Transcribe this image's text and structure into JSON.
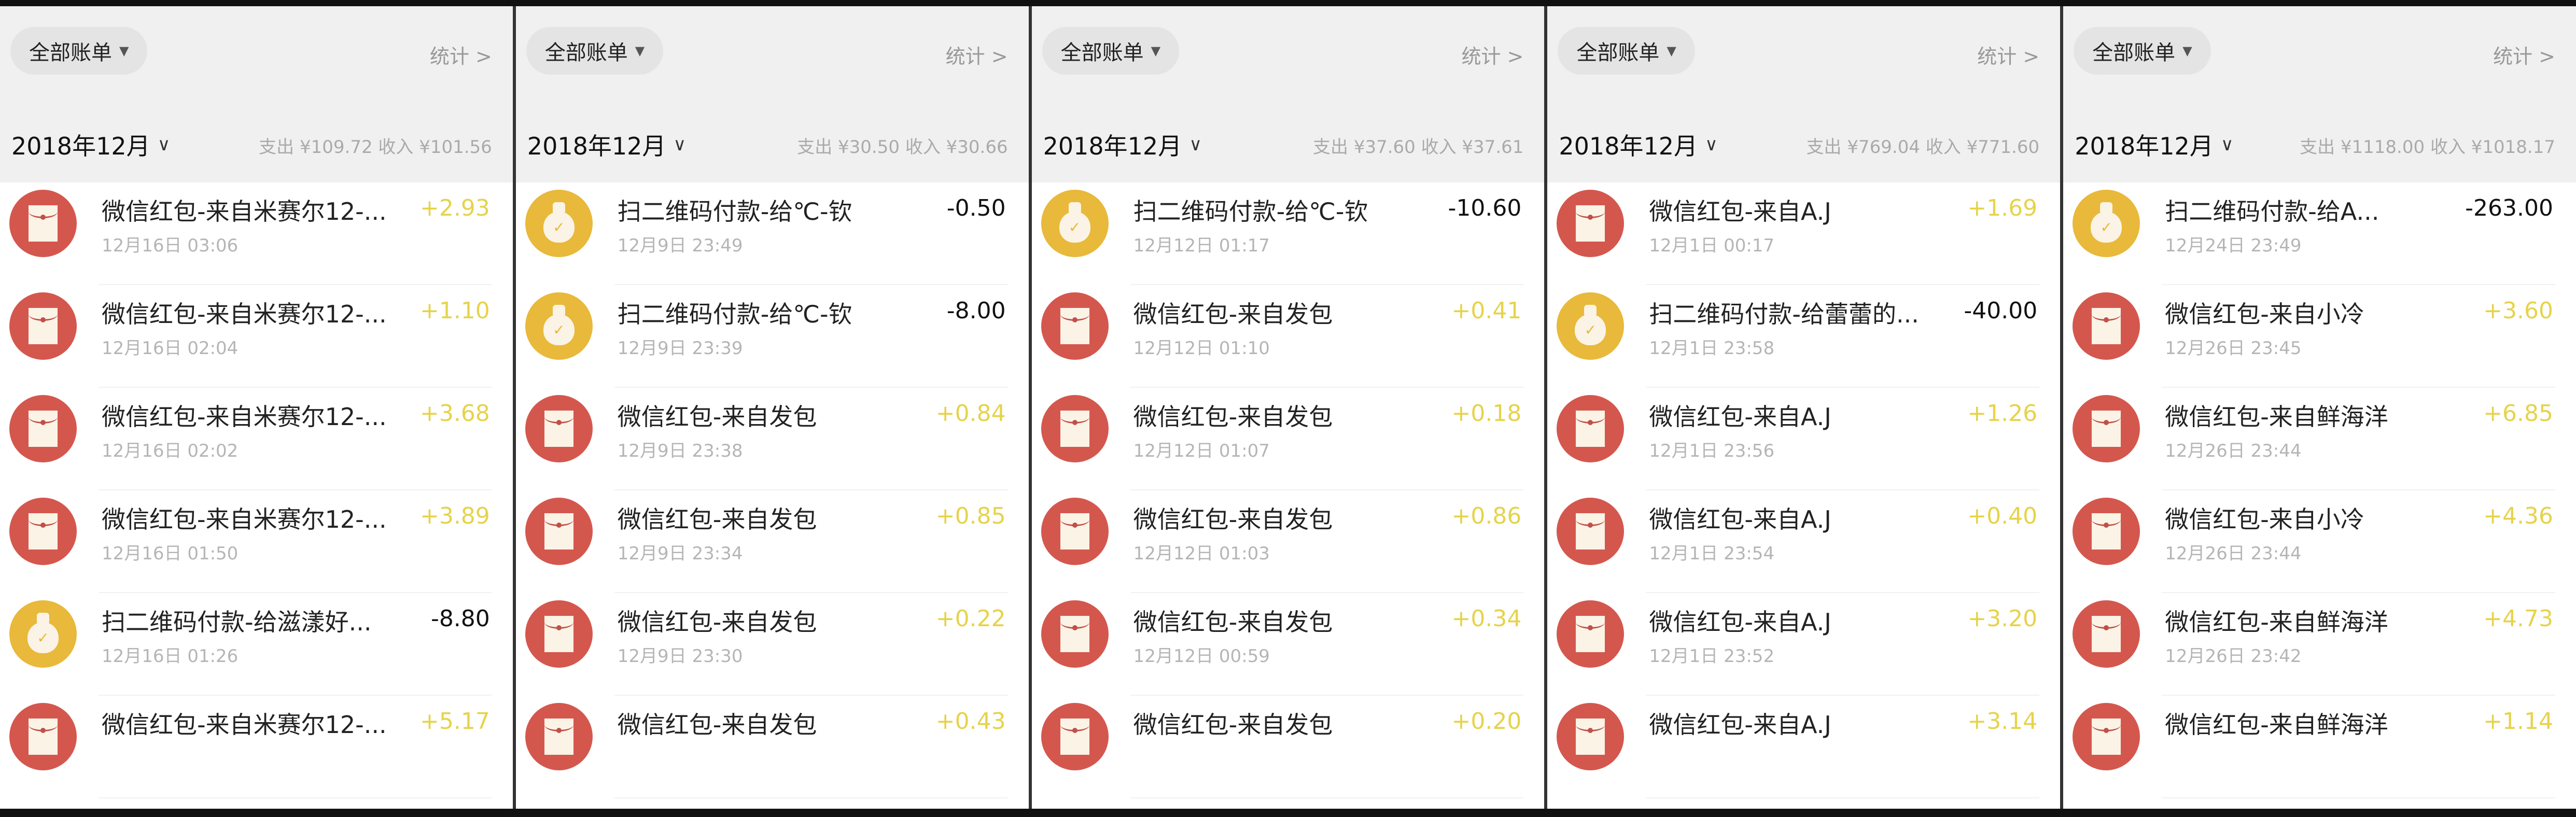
{
  "accent_colors": {
    "income": "#e6d34a",
    "expense": "#111111",
    "red_packet": "#d4574e",
    "scan_pay": "#e8b93a"
  },
  "panels": [
    {
      "filter_label": "全部账单",
      "stats_label": "统计 >",
      "month": "2018年12月",
      "summary": "支出 ¥109.72  收入 ¥101.56",
      "items": [
        {
          "type": "red",
          "title": "微信红包-来自米赛尔12-...",
          "date": "12月16日 03:06",
          "amount": "+2.93",
          "dir": "in"
        },
        {
          "type": "red",
          "title": "微信红包-来自米赛尔12-...",
          "date": "12月16日 02:04",
          "amount": "+1.10",
          "dir": "in"
        },
        {
          "type": "red",
          "title": "微信红包-来自米赛尔12-...",
          "date": "12月16日 02:02",
          "amount": "+3.68",
          "dir": "in"
        },
        {
          "type": "red",
          "title": "微信红包-来自米赛尔12-...",
          "date": "12月16日 01:50",
          "amount": "+3.89",
          "dir": "in"
        },
        {
          "type": "gold",
          "title": "扫二维码付款-给滋漾好...",
          "date": "12月16日 01:26",
          "amount": "-8.80",
          "dir": "out"
        },
        {
          "type": "red",
          "title": "微信红包-来自米赛尔12-...",
          "date": "",
          "amount": "+5.17",
          "dir": "in"
        }
      ]
    },
    {
      "filter_label": "全部账单",
      "stats_label": "统计 >",
      "month": "2018年12月",
      "summary": "支出 ¥30.50  收入 ¥30.66",
      "items": [
        {
          "type": "gold",
          "title": "扫二维码付款-给℃-钦",
          "date": "12月9日 23:49",
          "amount": "-0.50",
          "dir": "out"
        },
        {
          "type": "gold",
          "title": "扫二维码付款-给℃-钦",
          "date": "12月9日 23:39",
          "amount": "-8.00",
          "dir": "out"
        },
        {
          "type": "red",
          "title": "微信红包-来自发包",
          "date": "12月9日 23:38",
          "amount": "+0.84",
          "dir": "in"
        },
        {
          "type": "red",
          "title": "微信红包-来自发包",
          "date": "12月9日 23:34",
          "amount": "+0.85",
          "dir": "in"
        },
        {
          "type": "red",
          "title": "微信红包-来自发包",
          "date": "12月9日 23:30",
          "amount": "+0.22",
          "dir": "in"
        },
        {
          "type": "red",
          "title": "微信红包-来自发包",
          "date": "",
          "amount": "+0.43",
          "dir": "in"
        }
      ]
    },
    {
      "filter_label": "全部账单",
      "stats_label": "统计 >",
      "month": "2018年12月",
      "summary": "支出 ¥37.60  收入 ¥37.61",
      "items": [
        {
          "type": "gold",
          "title": "扫二维码付款-给℃-钦",
          "date": "12月12日 01:17",
          "amount": "-10.60",
          "dir": "out"
        },
        {
          "type": "red",
          "title": "微信红包-来自发包",
          "date": "12月12日 01:10",
          "amount": "+0.41",
          "dir": "in"
        },
        {
          "type": "red",
          "title": "微信红包-来自发包",
          "date": "12月12日 01:07",
          "amount": "+0.18",
          "dir": "in"
        },
        {
          "type": "red",
          "title": "微信红包-来自发包",
          "date": "12月12日 01:03",
          "amount": "+0.86",
          "dir": "in"
        },
        {
          "type": "red",
          "title": "微信红包-来自发包",
          "date": "12月12日 00:59",
          "amount": "+0.34",
          "dir": "in"
        },
        {
          "type": "red",
          "title": "微信红包-来自发包",
          "date": "",
          "amount": "+0.20",
          "dir": "in"
        }
      ]
    },
    {
      "filter_label": "全部账单",
      "stats_label": "统计 >",
      "month": "2018年12月",
      "summary": "支出 ¥769.04  收入 ¥771.60",
      "items": [
        {
          "type": "red",
          "title": "微信红包-来自A.J",
          "date": "12月1日 00:17",
          "amount": "+1.69",
          "dir": "in"
        },
        {
          "type": "gold",
          "title": "扫二维码付款-给蕾蕾的...",
          "date": "12月1日 23:58",
          "amount": "-40.00",
          "dir": "out"
        },
        {
          "type": "red",
          "title": "微信红包-来自A.J",
          "date": "12月1日 23:56",
          "amount": "+1.26",
          "dir": "in"
        },
        {
          "type": "red",
          "title": "微信红包-来自A.J",
          "date": "12月1日 23:54",
          "amount": "+0.40",
          "dir": "in"
        },
        {
          "type": "red",
          "title": "微信红包-来自A.J",
          "date": "12月1日 23:52",
          "amount": "+3.20",
          "dir": "in"
        },
        {
          "type": "red",
          "title": "微信红包-来自A.J",
          "date": "",
          "amount": "+3.14",
          "dir": "in"
        }
      ]
    },
    {
      "filter_label": "全部账单",
      "stats_label": "统计 >",
      "month": "2018年12月",
      "summary": "支出 ¥1118.00  收入 ¥1018.17",
      "items": [
        {
          "type": "gold",
          "title": "扫二维码付款-给A...",
          "date": "12月24日 23:49",
          "amount": "-263.00",
          "dir": "out"
        },
        {
          "type": "red",
          "title": "微信红包-来自小冷",
          "date": "12月26日 23:45",
          "amount": "+3.60",
          "dir": "in"
        },
        {
          "type": "red",
          "title": "微信红包-来自鲜海洋",
          "date": "12月26日 23:44",
          "amount": "+6.85",
          "dir": "in"
        },
        {
          "type": "red",
          "title": "微信红包-来自小冷",
          "date": "12月26日 23:44",
          "amount": "+4.36",
          "dir": "in"
        },
        {
          "type": "red",
          "title": "微信红包-来自鲜海洋",
          "date": "12月26日 23:42",
          "amount": "+4.73",
          "dir": "in"
        },
        {
          "type": "red",
          "title": "微信红包-来自鲜海洋",
          "date": "",
          "amount": "+1.14",
          "dir": "in"
        }
      ]
    }
  ]
}
